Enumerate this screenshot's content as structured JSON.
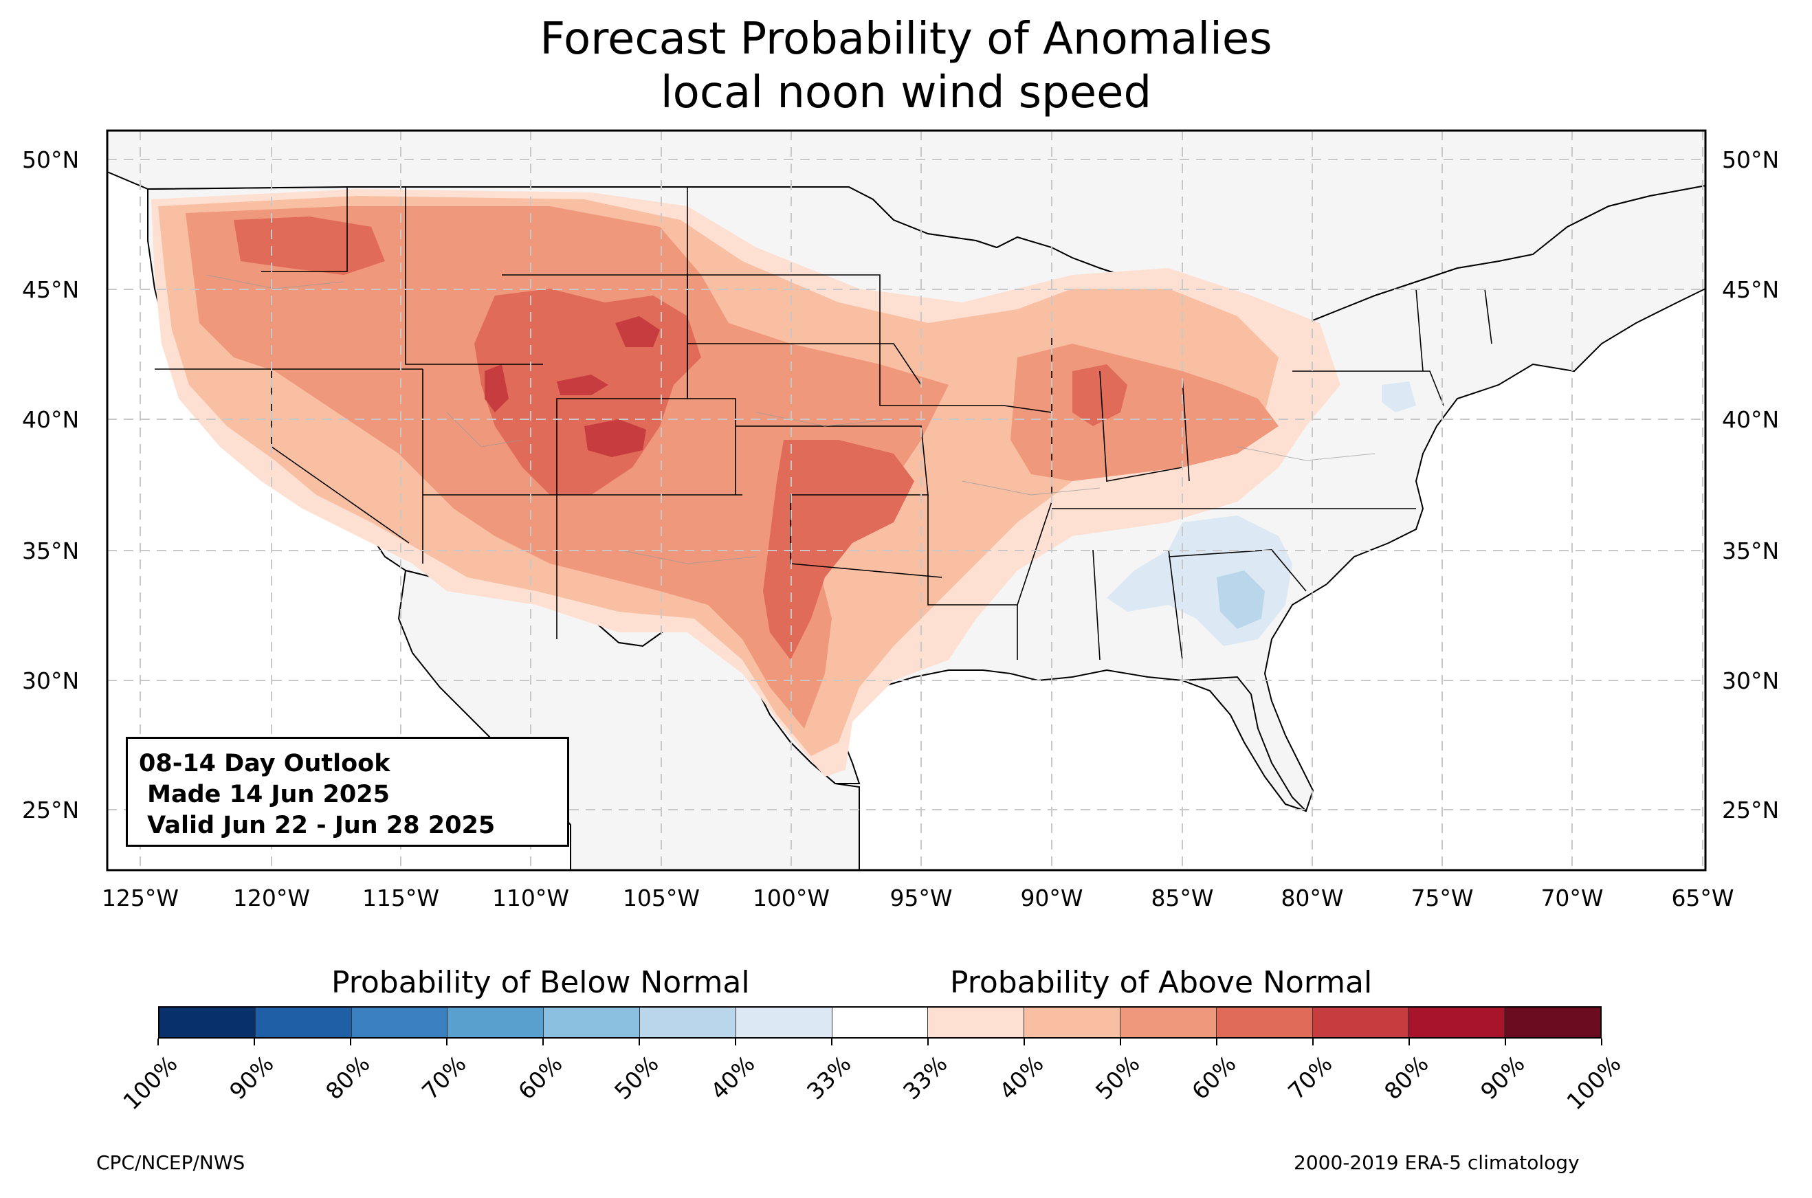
{
  "title": {
    "line1": "Forecast Probability of Anomalies",
    "line2": "local noon wind speed"
  },
  "outlook_box": {
    "line1": "08-14 Day Outlook",
    "line2": " Made 14 Jun 2025",
    "line3": " Valid Jun 22 - Jun 28 2025"
  },
  "axes": {
    "lat_labels": [
      "50°N",
      "45°N",
      "40°N",
      "35°N",
      "30°N",
      "25°N"
    ],
    "lon_labels": [
      "125°W",
      "120°W",
      "115°W",
      "110°W",
      "105°W",
      "100°W",
      "95°W",
      "90°W",
      "85°W",
      "80°W",
      "75°W",
      "70°W",
      "65°W"
    ]
  },
  "colorbar": {
    "below_label": "Probability of Below Normal",
    "above_label": "Probability of Above Normal",
    "ticks": [
      "100%",
      "90%",
      "80%",
      "70%",
      "60%",
      "50%",
      "40%",
      "33%",
      "33%",
      "40%",
      "50%",
      "60%",
      "70%",
      "80%",
      "90%",
      "100%"
    ],
    "colors": [
      "#08306b",
      "#1f5fa6",
      "#3a7fc0",
      "#5aa0cf",
      "#8cc0e0",
      "#b9d6ea",
      "#dce9f4",
      "#ffffff",
      "#fde0d2",
      "#f8bfa3",
      "#f0987b",
      "#e06b58",
      "#c73c3e",
      "#a8152b",
      "#6b0b1f"
    ]
  },
  "credits": {
    "left": "CPC/NCEP/NWS",
    "right": "2000-2019 ERA-5 climatology"
  },
  "map_regions": {
    "land_color": "#f4f5f4",
    "ocean_color": "#ffffff",
    "above_40": "#fde0d2",
    "above_50": "#f8bfa3",
    "above_60": "#f0987b",
    "above_70": "#e06b58",
    "above_80": "#c73c3e",
    "below_40": "#dce9f4",
    "below_50": "#b9d6ea"
  }
}
